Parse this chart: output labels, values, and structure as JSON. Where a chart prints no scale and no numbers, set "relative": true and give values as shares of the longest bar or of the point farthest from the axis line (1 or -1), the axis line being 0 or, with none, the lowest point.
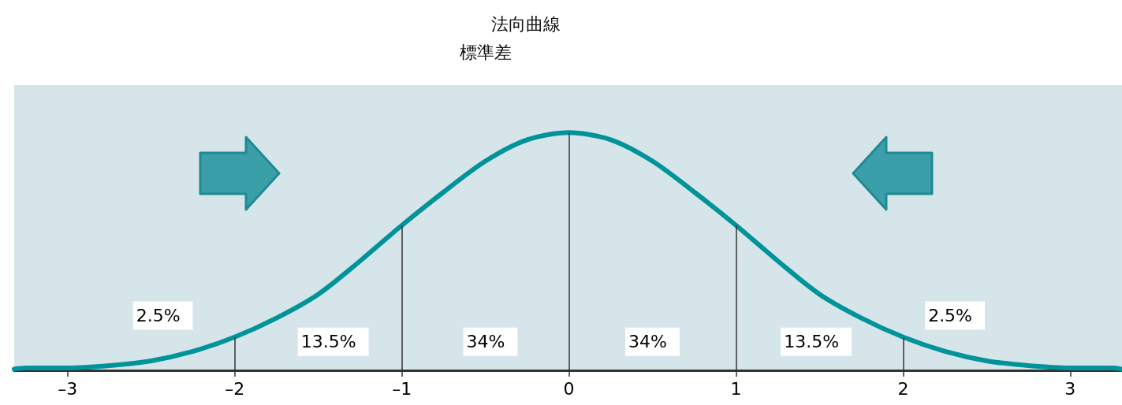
{
  "chart_data": {
    "type": "line",
    "title": "法向曲線",
    "subtitle": "標準差",
    "relative": true,
    "x": [
      -3.32,
      -3.25,
      -3,
      -2.75,
      -2.5,
      -2.25,
      -2,
      -1.75,
      -1.5,
      -1.25,
      -1,
      -0.75,
      -0.5,
      -0.25,
      0,
      0.25,
      0.5,
      0.75,
      1,
      1.25,
      1.5,
      1.75,
      2,
      2.25,
      2.5,
      2.75,
      3,
      3.25,
      3.31
    ],
    "series": [
      {
        "color": "#00939a",
        "values": [
          0.005,
          0.01,
          0.01,
          0.02,
          0.04,
          0.08,
          0.14,
          0.22,
          0.32,
          0.46,
          0.61,
          0.75,
          0.88,
          0.97,
          1,
          0.97,
          0.88,
          0.75,
          0.61,
          0.46,
          0.32,
          0.22,
          0.14,
          0.08,
          0.04,
          0.02,
          0.01,
          0.01,
          0.005
        ]
      }
    ],
    "xlim": [
      -3.32,
      3.31
    ],
    "xticks": [
      {
        "value": -3,
        "label": "–3"
      },
      {
        "value": -2,
        "label": "–2"
      },
      {
        "value": -1,
        "label": "–1"
      },
      0,
      1,
      2,
      3
    ],
    "ref_lines": [
      {
        "axis": "x",
        "value": -2,
        "color": "#333333"
      },
      {
        "axis": "x",
        "value": -1,
        "color": "#333333"
      },
      {
        "axis": "x",
        "value": 0,
        "color": "#333333"
      },
      {
        "axis": "x",
        "value": 1,
        "color": "#333333"
      },
      {
        "axis": "x",
        "value": 2,
        "color": "#333333"
      }
    ],
    "annotations": [
      "2.5%",
      "13.5%",
      "34%",
      "34%",
      "13.5%",
      "2.5%"
    ],
    "grid": false,
    "marker": "none",
    "line_style": "solid"
  }
}
